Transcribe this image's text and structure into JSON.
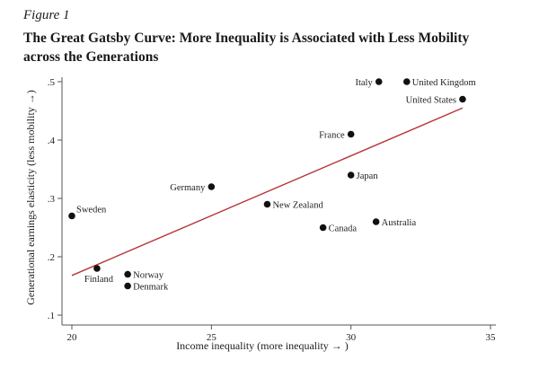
{
  "figure": {
    "label": "Figure 1",
    "title": "The Great Gatsby Curve: More Inequality is Associated with Less Mobility across the Generations"
  },
  "chart_data": {
    "type": "scatter",
    "title": "The Great Gatsby Curve: More Inequality is Associated with Less Mobility across the Generations",
    "xlabel": "Income inequality (more inequality → )",
    "ylabel": "Generational earnings elasticity (less mobility →)",
    "xlim": [
      19.6,
      35.3
    ],
    "ylim": [
      0.09,
      0.52
    ],
    "xticks": [
      20,
      25,
      30,
      35
    ],
    "xtick_labels": [
      "20",
      "25",
      "30",
      "35"
    ],
    "yticks": [
      0.1,
      0.2,
      0.3,
      0.4,
      0.5
    ],
    "ytick_labels": [
      ".1",
      ".2",
      ".3",
      ".4",
      ".5"
    ],
    "grid": false,
    "points": [
      {
        "label": "Italy",
        "x": 31.0,
        "y": 0.5,
        "label_pos": "left"
      },
      {
        "label": "United Kingdom",
        "x": 32.0,
        "y": 0.5,
        "label_pos": "right"
      },
      {
        "label": "United States",
        "x": 34.0,
        "y": 0.47,
        "label_pos": "left"
      },
      {
        "label": "France",
        "x": 30.0,
        "y": 0.41,
        "label_pos": "left"
      },
      {
        "label": "Japan",
        "x": 30.0,
        "y": 0.34,
        "label_pos": "right"
      },
      {
        "label": "Germany",
        "x": 25.0,
        "y": 0.32,
        "label_pos": "left"
      },
      {
        "label": "New Zealand",
        "x": 27.0,
        "y": 0.29,
        "label_pos": "right"
      },
      {
        "label": "Australia",
        "x": 30.9,
        "y": 0.26,
        "label_pos": "right"
      },
      {
        "label": "Canada",
        "x": 29.0,
        "y": 0.25,
        "label_pos": "right"
      },
      {
        "label": "Sweden",
        "x": 20.0,
        "y": 0.27,
        "label_pos": "upper-right"
      },
      {
        "label": "Finland",
        "x": 20.9,
        "y": 0.18,
        "label_pos": "below"
      },
      {
        "label": "Norway",
        "x": 22.0,
        "y": 0.17,
        "label_pos": "right"
      },
      {
        "label": "Denmark",
        "x": 22.0,
        "y": 0.15,
        "label_pos": "right"
      }
    ],
    "fit_line": {
      "color": "#b5343c",
      "start": {
        "x": 20.0,
        "y": 0.168
      },
      "end": {
        "x": 34.0,
        "y": 0.455
      }
    },
    "point_color": "#111111"
  }
}
